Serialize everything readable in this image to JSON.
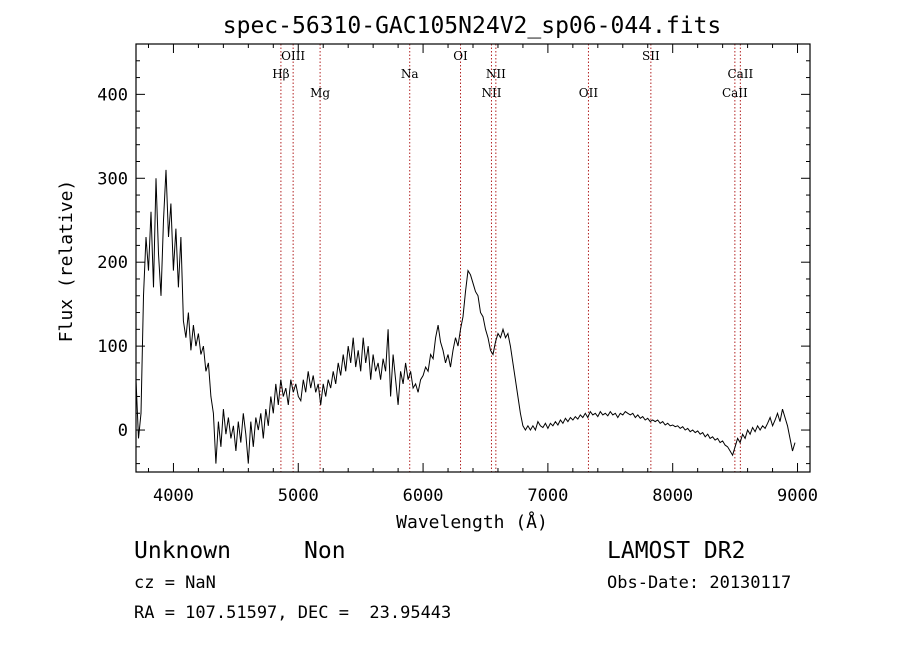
{
  "chart_data": {
    "type": "line",
    "title": "spec-56310-GAC105N24V2_sp06-044.fits",
    "xlabel": "Wavelength (Å)",
    "ylabel": "Flux (relative)",
    "xlim": [
      3700,
      9100
    ],
    "ylim": [
      -50,
      460
    ],
    "xticks": [
      4000,
      5000,
      6000,
      7000,
      8000,
      9000
    ],
    "yticks": [
      0,
      100,
      200,
      300,
      400
    ],
    "grid": false,
    "legend": "none",
    "colors": {
      "spectrum": "#000000",
      "line_marker": "#b22222",
      "axes": "#000000"
    },
    "lines": [
      {
        "label": "Hβ",
        "wavelength": 4861,
        "row": 1
      },
      {
        "label": "OIII",
        "wavelength": 4959,
        "row": 0
      },
      {
        "label": "Mg",
        "wavelength": 5175,
        "row": 2
      },
      {
        "label": "Na",
        "wavelength": 5893,
        "row": 1
      },
      {
        "label": "OI",
        "wavelength": 6300,
        "row": 0
      },
      {
        "label": "NII",
        "wavelength": 6548,
        "row": 2
      },
      {
        "label": "NII",
        "wavelength": 6583,
        "row": 1
      },
      {
        "label": "OII",
        "wavelength": 7325,
        "row": 2
      },
      {
        "label": "SII",
        "wavelength": 7825,
        "row": 0
      },
      {
        "label": "CaII",
        "wavelength": 8498,
        "row": 2
      },
      {
        "label": "CaII",
        "wavelength": 8542,
        "row": 1
      }
    ],
    "series": [
      {
        "values": [
          [
            3700,
            60
          ],
          [
            3720,
            -10
          ],
          [
            3740,
            20
          ],
          [
            3760,
            160
          ],
          [
            3780,
            230
          ],
          [
            3800,
            190
          ],
          [
            3820,
            260
          ],
          [
            3840,
            170
          ],
          [
            3860,
            300
          ],
          [
            3880,
            210
          ],
          [
            3900,
            160
          ],
          [
            3920,
            250
          ],
          [
            3940,
            310
          ],
          [
            3960,
            230
          ],
          [
            3980,
            270
          ],
          [
            4000,
            190
          ],
          [
            4020,
            240
          ],
          [
            4040,
            170
          ],
          [
            4060,
            230
          ],
          [
            4080,
            130
          ],
          [
            4100,
            110
          ],
          [
            4120,
            140
          ],
          [
            4140,
            95
          ],
          [
            4160,
            125
          ],
          [
            4180,
            100
          ],
          [
            4200,
            115
          ],
          [
            4220,
            90
          ],
          [
            4240,
            100
          ],
          [
            4260,
            70
          ],
          [
            4280,
            80
          ],
          [
            4300,
            40
          ],
          [
            4320,
            20
          ],
          [
            4340,
            -40
          ],
          [
            4360,
            10
          ],
          [
            4380,
            -20
          ],
          [
            4400,
            25
          ],
          [
            4420,
            -5
          ],
          [
            4440,
            15
          ],
          [
            4460,
            -10
          ],
          [
            4480,
            5
          ],
          [
            4500,
            -25
          ],
          [
            4520,
            10
          ],
          [
            4540,
            -15
          ],
          [
            4560,
            20
          ],
          [
            4580,
            -5
          ],
          [
            4600,
            -40
          ],
          [
            4620,
            10
          ],
          [
            4640,
            -20
          ],
          [
            4660,
            15
          ],
          [
            4680,
            0
          ],
          [
            4700,
            20
          ],
          [
            4720,
            -10
          ],
          [
            4740,
            25
          ],
          [
            4760,
            5
          ],
          [
            4780,
            40
          ],
          [
            4800,
            20
          ],
          [
            4820,
            55
          ],
          [
            4840,
            30
          ],
          [
            4860,
            60
          ],
          [
            4880,
            40
          ],
          [
            4900,
            50
          ],
          [
            4920,
            30
          ],
          [
            4940,
            60
          ],
          [
            4960,
            45
          ],
          [
            4980,
            55
          ],
          [
            5000,
            40
          ],
          [
            5020,
            35
          ],
          [
            5040,
            60
          ],
          [
            5060,
            45
          ],
          [
            5080,
            70
          ],
          [
            5100,
            50
          ],
          [
            5120,
            65
          ],
          [
            5140,
            45
          ],
          [
            5160,
            55
          ],
          [
            5180,
            30
          ],
          [
            5200,
            55
          ],
          [
            5220,
            40
          ],
          [
            5240,
            60
          ],
          [
            5260,
            50
          ],
          [
            5280,
            70
          ],
          [
            5300,
            55
          ],
          [
            5320,
            80
          ],
          [
            5340,
            65
          ],
          [
            5360,
            90
          ],
          [
            5380,
            70
          ],
          [
            5400,
            100
          ],
          [
            5420,
            80
          ],
          [
            5440,
            110
          ],
          [
            5460,
            75
          ],
          [
            5480,
            95
          ],
          [
            5500,
            70
          ],
          [
            5520,
            110
          ],
          [
            5540,
            80
          ],
          [
            5560,
            100
          ],
          [
            5580,
            60
          ],
          [
            5600,
            90
          ],
          [
            5620,
            70
          ],
          [
            5640,
            80
          ],
          [
            5660,
            60
          ],
          [
            5680,
            85
          ],
          [
            5700,
            70
          ],
          [
            5720,
            120
          ],
          [
            5740,
            40
          ],
          [
            5760,
            90
          ],
          [
            5780,
            60
          ],
          [
            5800,
            30
          ],
          [
            5820,
            70
          ],
          [
            5840,
            55
          ],
          [
            5860,
            80
          ],
          [
            5880,
            60
          ],
          [
            5900,
            70
          ],
          [
            5920,
            50
          ],
          [
            5940,
            55
          ],
          [
            5960,
            45
          ],
          [
            5980,
            60
          ],
          [
            6000,
            65
          ],
          [
            6020,
            75
          ],
          [
            6040,
            70
          ],
          [
            6060,
            90
          ],
          [
            6080,
            85
          ],
          [
            6100,
            110
          ],
          [
            6120,
            125
          ],
          [
            6140,
            105
          ],
          [
            6160,
            95
          ],
          [
            6180,
            80
          ],
          [
            6200,
            90
          ],
          [
            6220,
            75
          ],
          [
            6240,
            95
          ],
          [
            6260,
            110
          ],
          [
            6280,
            100
          ],
          [
            6300,
            120
          ],
          [
            6320,
            135
          ],
          [
            6340,
            165
          ],
          [
            6360,
            190
          ],
          [
            6380,
            185
          ],
          [
            6400,
            175
          ],
          [
            6420,
            165
          ],
          [
            6440,
            160
          ],
          [
            6460,
            140
          ],
          [
            6480,
            135
          ],
          [
            6500,
            120
          ],
          [
            6520,
            110
          ],
          [
            6540,
            95
          ],
          [
            6560,
            90
          ],
          [
            6580,
            105
          ],
          [
            6600,
            115
          ],
          [
            6620,
            110
          ],
          [
            6640,
            120
          ],
          [
            6660,
            110
          ],
          [
            6680,
            115
          ],
          [
            6700,
            100
          ],
          [
            6720,
            80
          ],
          [
            6740,
            60
          ],
          [
            6760,
            40
          ],
          [
            6780,
            20
          ],
          [
            6800,
            5
          ],
          [
            6820,
            0
          ],
          [
            6840,
            5
          ],
          [
            6860,
            0
          ],
          [
            6880,
            5
          ],
          [
            6900,
            0
          ],
          [
            6920,
            10
          ],
          [
            6940,
            5
          ],
          [
            6960,
            3
          ],
          [
            6980,
            8
          ],
          [
            7000,
            2
          ],
          [
            7020,
            8
          ],
          [
            7040,
            5
          ],
          [
            7060,
            10
          ],
          [
            7080,
            6
          ],
          [
            7100,
            12
          ],
          [
            7120,
            8
          ],
          [
            7140,
            14
          ],
          [
            7160,
            10
          ],
          [
            7180,
            15
          ],
          [
            7200,
            12
          ],
          [
            7220,
            16
          ],
          [
            7240,
            13
          ],
          [
            7260,
            18
          ],
          [
            7280,
            15
          ],
          [
            7300,
            20
          ],
          [
            7320,
            15
          ],
          [
            7340,
            22
          ],
          [
            7360,
            18
          ],
          [
            7380,
            20
          ],
          [
            7400,
            16
          ],
          [
            7420,
            22
          ],
          [
            7440,
            18
          ],
          [
            7460,
            20
          ],
          [
            7480,
            17
          ],
          [
            7500,
            22
          ],
          [
            7520,
            18
          ],
          [
            7540,
            20
          ],
          [
            7560,
            15
          ],
          [
            7580,
            20
          ],
          [
            7600,
            18
          ],
          [
            7620,
            22
          ],
          [
            7640,
            20
          ],
          [
            7660,
            18
          ],
          [
            7680,
            20
          ],
          [
            7700,
            15
          ],
          [
            7720,
            18
          ],
          [
            7740,
            14
          ],
          [
            7760,
            16
          ],
          [
            7780,
            12
          ],
          [
            7800,
            14
          ],
          [
            7820,
            10
          ],
          [
            7840,
            12
          ],
          [
            7860,
            10
          ],
          [
            7880,
            12
          ],
          [
            7900,
            8
          ],
          [
            7920,
            10
          ],
          [
            7940,
            6
          ],
          [
            7960,
            8
          ],
          [
            7980,
            5
          ],
          [
            8000,
            6
          ],
          [
            8020,
            4
          ],
          [
            8040,
            5
          ],
          [
            8060,
            2
          ],
          [
            8080,
            4
          ],
          [
            8100,
            0
          ],
          [
            8120,
            2
          ],
          [
            8140,
            -2
          ],
          [
            8160,
            0
          ],
          [
            8180,
            -3
          ],
          [
            8200,
            -1
          ],
          [
            8220,
            -5
          ],
          [
            8240,
            -3
          ],
          [
            8260,
            -8
          ],
          [
            8280,
            -5
          ],
          [
            8300,
            -10
          ],
          [
            8320,
            -8
          ],
          [
            8340,
            -12
          ],
          [
            8360,
            -10
          ],
          [
            8380,
            -15
          ],
          [
            8400,
            -13
          ],
          [
            8420,
            -18
          ],
          [
            8440,
            -20
          ],
          [
            8460,
            -25
          ],
          [
            8480,
            -30
          ],
          [
            8500,
            -20
          ],
          [
            8520,
            -10
          ],
          [
            8540,
            -15
          ],
          [
            8560,
            -5
          ],
          [
            8580,
            -10
          ],
          [
            8600,
            0
          ],
          [
            8620,
            -5
          ],
          [
            8640,
            3
          ],
          [
            8660,
            -2
          ],
          [
            8680,
            5
          ],
          [
            8700,
            0
          ],
          [
            8720,
            5
          ],
          [
            8740,
            2
          ],
          [
            8760,
            8
          ],
          [
            8780,
            15
          ],
          [
            8800,
            5
          ],
          [
            8820,
            12
          ],
          [
            8840,
            20
          ],
          [
            8860,
            10
          ],
          [
            8880,
            25
          ],
          [
            8900,
            15
          ],
          [
            8920,
            5
          ],
          [
            8940,
            -10
          ],
          [
            8960,
            -25
          ],
          [
            8980,
            -15
          ]
        ]
      }
    ]
  },
  "info": {
    "class": "Unknown",
    "subclass": "Non",
    "survey": "LAMOST DR2",
    "cz": "cz = NaN",
    "obs_date": "Obs-Date: 20130117",
    "coords": "RA = 107.51597, DEC =  23.95443"
  }
}
